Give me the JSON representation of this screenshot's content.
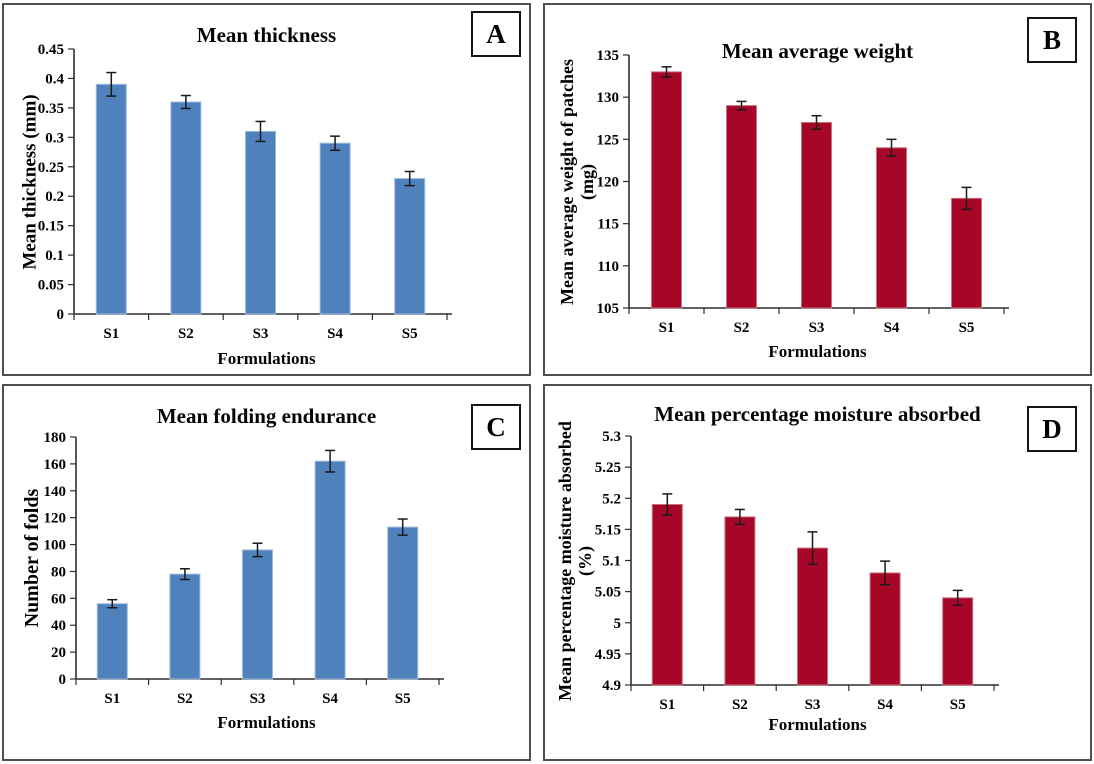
{
  "colors": {
    "blue_bar": "#4F81BD",
    "blue_bar_edge": "#9DBADC",
    "red_bar": "#A60728",
    "red_bar_edge": "#C9717D",
    "axis": "#2E2E2E",
    "error_bar": "#1A1A1A",
    "panel_border": "#4F4F4F",
    "text": "#000000"
  },
  "chart_data": [
    {
      "type": "bar",
      "letter": "A",
      "title": "Mean thickness",
      "ylabel": "Mean thickness (mm)",
      "xlabel": "Formulations",
      "categories": [
        "S1",
        "S2",
        "S3",
        "S4",
        "S5"
      ],
      "values": [
        0.39,
        0.36,
        0.31,
        0.29,
        0.23
      ],
      "errors": [
        0.02,
        0.011,
        0.017,
        0.012,
        0.012
      ],
      "ylim": [
        0,
        0.45
      ],
      "yticks": [
        "0",
        "0.05",
        "0.1",
        "0.15",
        "0.2",
        "0.25",
        "0.3",
        "0.35",
        "0.4",
        "0.45"
      ],
      "grid": false,
      "legend": "none",
      "bar_color": "#4F81BD",
      "bar_edge_color": "#9DBADC"
    },
    {
      "type": "bar",
      "letter": "B",
      "title": "Mean average weight",
      "ylabel": "Mean average weight of patches\n(mg)",
      "xlabel": "Formulations",
      "categories": [
        "S1",
        "S2",
        "S3",
        "S4",
        "S5"
      ],
      "values": [
        133,
        129,
        127,
        124,
        118
      ],
      "errors": [
        0.6,
        0.5,
        0.8,
        1.0,
        1.3
      ],
      "ylim": [
        105,
        135
      ],
      "yticks": [
        "105",
        "110",
        "115",
        "120",
        "125",
        "130",
        "135"
      ],
      "grid": false,
      "legend": "none",
      "bar_color": "#A60728",
      "bar_edge_color": "#C9717D"
    },
    {
      "type": "bar",
      "letter": "C",
      "title": "Mean folding endurance",
      "ylabel": "Number of folds",
      "xlabel": "Formulations",
      "categories": [
        "S1",
        "S2",
        "S3",
        "S4",
        "S5"
      ],
      "values": [
        56,
        78,
        96,
        162,
        113
      ],
      "errors": [
        3,
        4,
        5,
        8,
        6
      ],
      "ylim": [
        0,
        180
      ],
      "yticks": [
        "0",
        "20",
        "40",
        "60",
        "80",
        "100",
        "120",
        "140",
        "160",
        "180"
      ],
      "grid": false,
      "legend": "none",
      "bar_color": "#4F81BD",
      "bar_edge_color": "#9DBADC"
    },
    {
      "type": "bar",
      "letter": "D",
      "title": "Mean percentage moisture absorbed",
      "ylabel": "Mean percentage moisture absorbed\n(%)",
      "xlabel": "Formulations",
      "categories": [
        "S1",
        "S2",
        "S3",
        "S4",
        "S5"
      ],
      "values": [
        5.19,
        5.17,
        5.12,
        5.08,
        5.04
      ],
      "errors": [
        0.017,
        0.012,
        0.026,
        0.019,
        0.012
      ],
      "ylim": [
        4.9,
        5.3
      ],
      "yticks": [
        "4.9",
        "4.95",
        "5",
        "5.05",
        "5.1",
        "5.15",
        "5.2",
        "5.25",
        "5.3"
      ],
      "grid": false,
      "legend": "none",
      "bar_color": "#A60728",
      "bar_edge_color": "#C9717D"
    }
  ]
}
